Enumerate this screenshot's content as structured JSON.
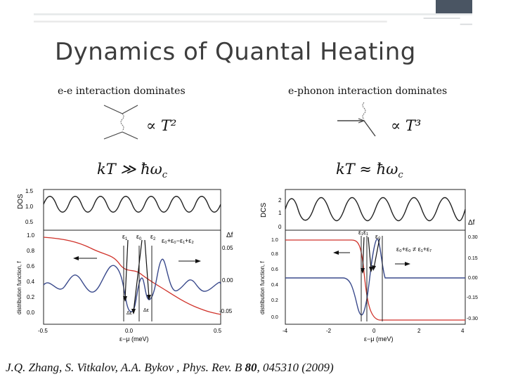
{
  "slide": {
    "title": "Dynamics of Quantal Heating",
    "left_heading": "e-e interaction dominates",
    "right_heading": "e-phonon interaction dominates",
    "left_scaling": "∝ T²",
    "right_scaling": "∝ T³",
    "left_condition": "kT ≫ ħω",
    "right_condition": "kT ≈ ħω",
    "condition_subscript": "c",
    "citation_prefix": "J.Q. Zhang, S. Vitkalov, A.A. Bykov , Phys. Rev. B ",
    "citation_volume": "80",
    "citation_suffix": ", 045310 (2009)",
    "colors": {
      "accent_bar": "#4a5563",
      "red_curve": "#d0322a",
      "blue_curve": "#3a4a8c"
    }
  },
  "plots": {
    "left": {
      "dos_label": "DOS",
      "dos_ticks": [
        "1.5",
        "1.0",
        "0.5"
      ],
      "f_label": "distribution function, f",
      "f_ticks": [
        "1.0",
        "0.8",
        "0.6",
        "0.4",
        "0.2",
        "0.0"
      ],
      "df_label": "Δf",
      "df_ticks": [
        "0.05",
        "0.00",
        "-0.05"
      ],
      "x_ticks": [
        "-0.5",
        "0.0",
        "0.5"
      ],
      "x_label": "ε−μ (meV)",
      "eps1": "ε",
      "eps1_sub": "1",
      "eps0": "ε",
      "eps0_sub": "0",
      "eps2": "ε",
      "eps2_sub": "2",
      "eq": "ε₀+ε₀−ε₁+ε₂",
      "delta1": "Δε",
      "delta2": "Δε"
    },
    "right": {
      "dos_label": "DCS",
      "dos_ticks": [
        "2",
        "1",
        "0"
      ],
      "f_label": "distribution function, f",
      "f_ticks": [
        "1.0",
        "0.8",
        "0.6",
        "0.4",
        "0.2",
        "0.0"
      ],
      "df_label": "Δf",
      "df_ticks": [
        "0.30",
        "0.15",
        "0.00",
        "-0.15",
        "-0.30"
      ],
      "x_ticks": [
        "-4",
        "-2",
        "0",
        "2",
        "4"
      ],
      "x_label": "ε−μ (meV)",
      "eps_pair": "ε₁ε₁",
      "eps0": "ε₀",
      "eq": "ε₀+ε₀ ≠ ε₁+ε₇"
    }
  }
}
